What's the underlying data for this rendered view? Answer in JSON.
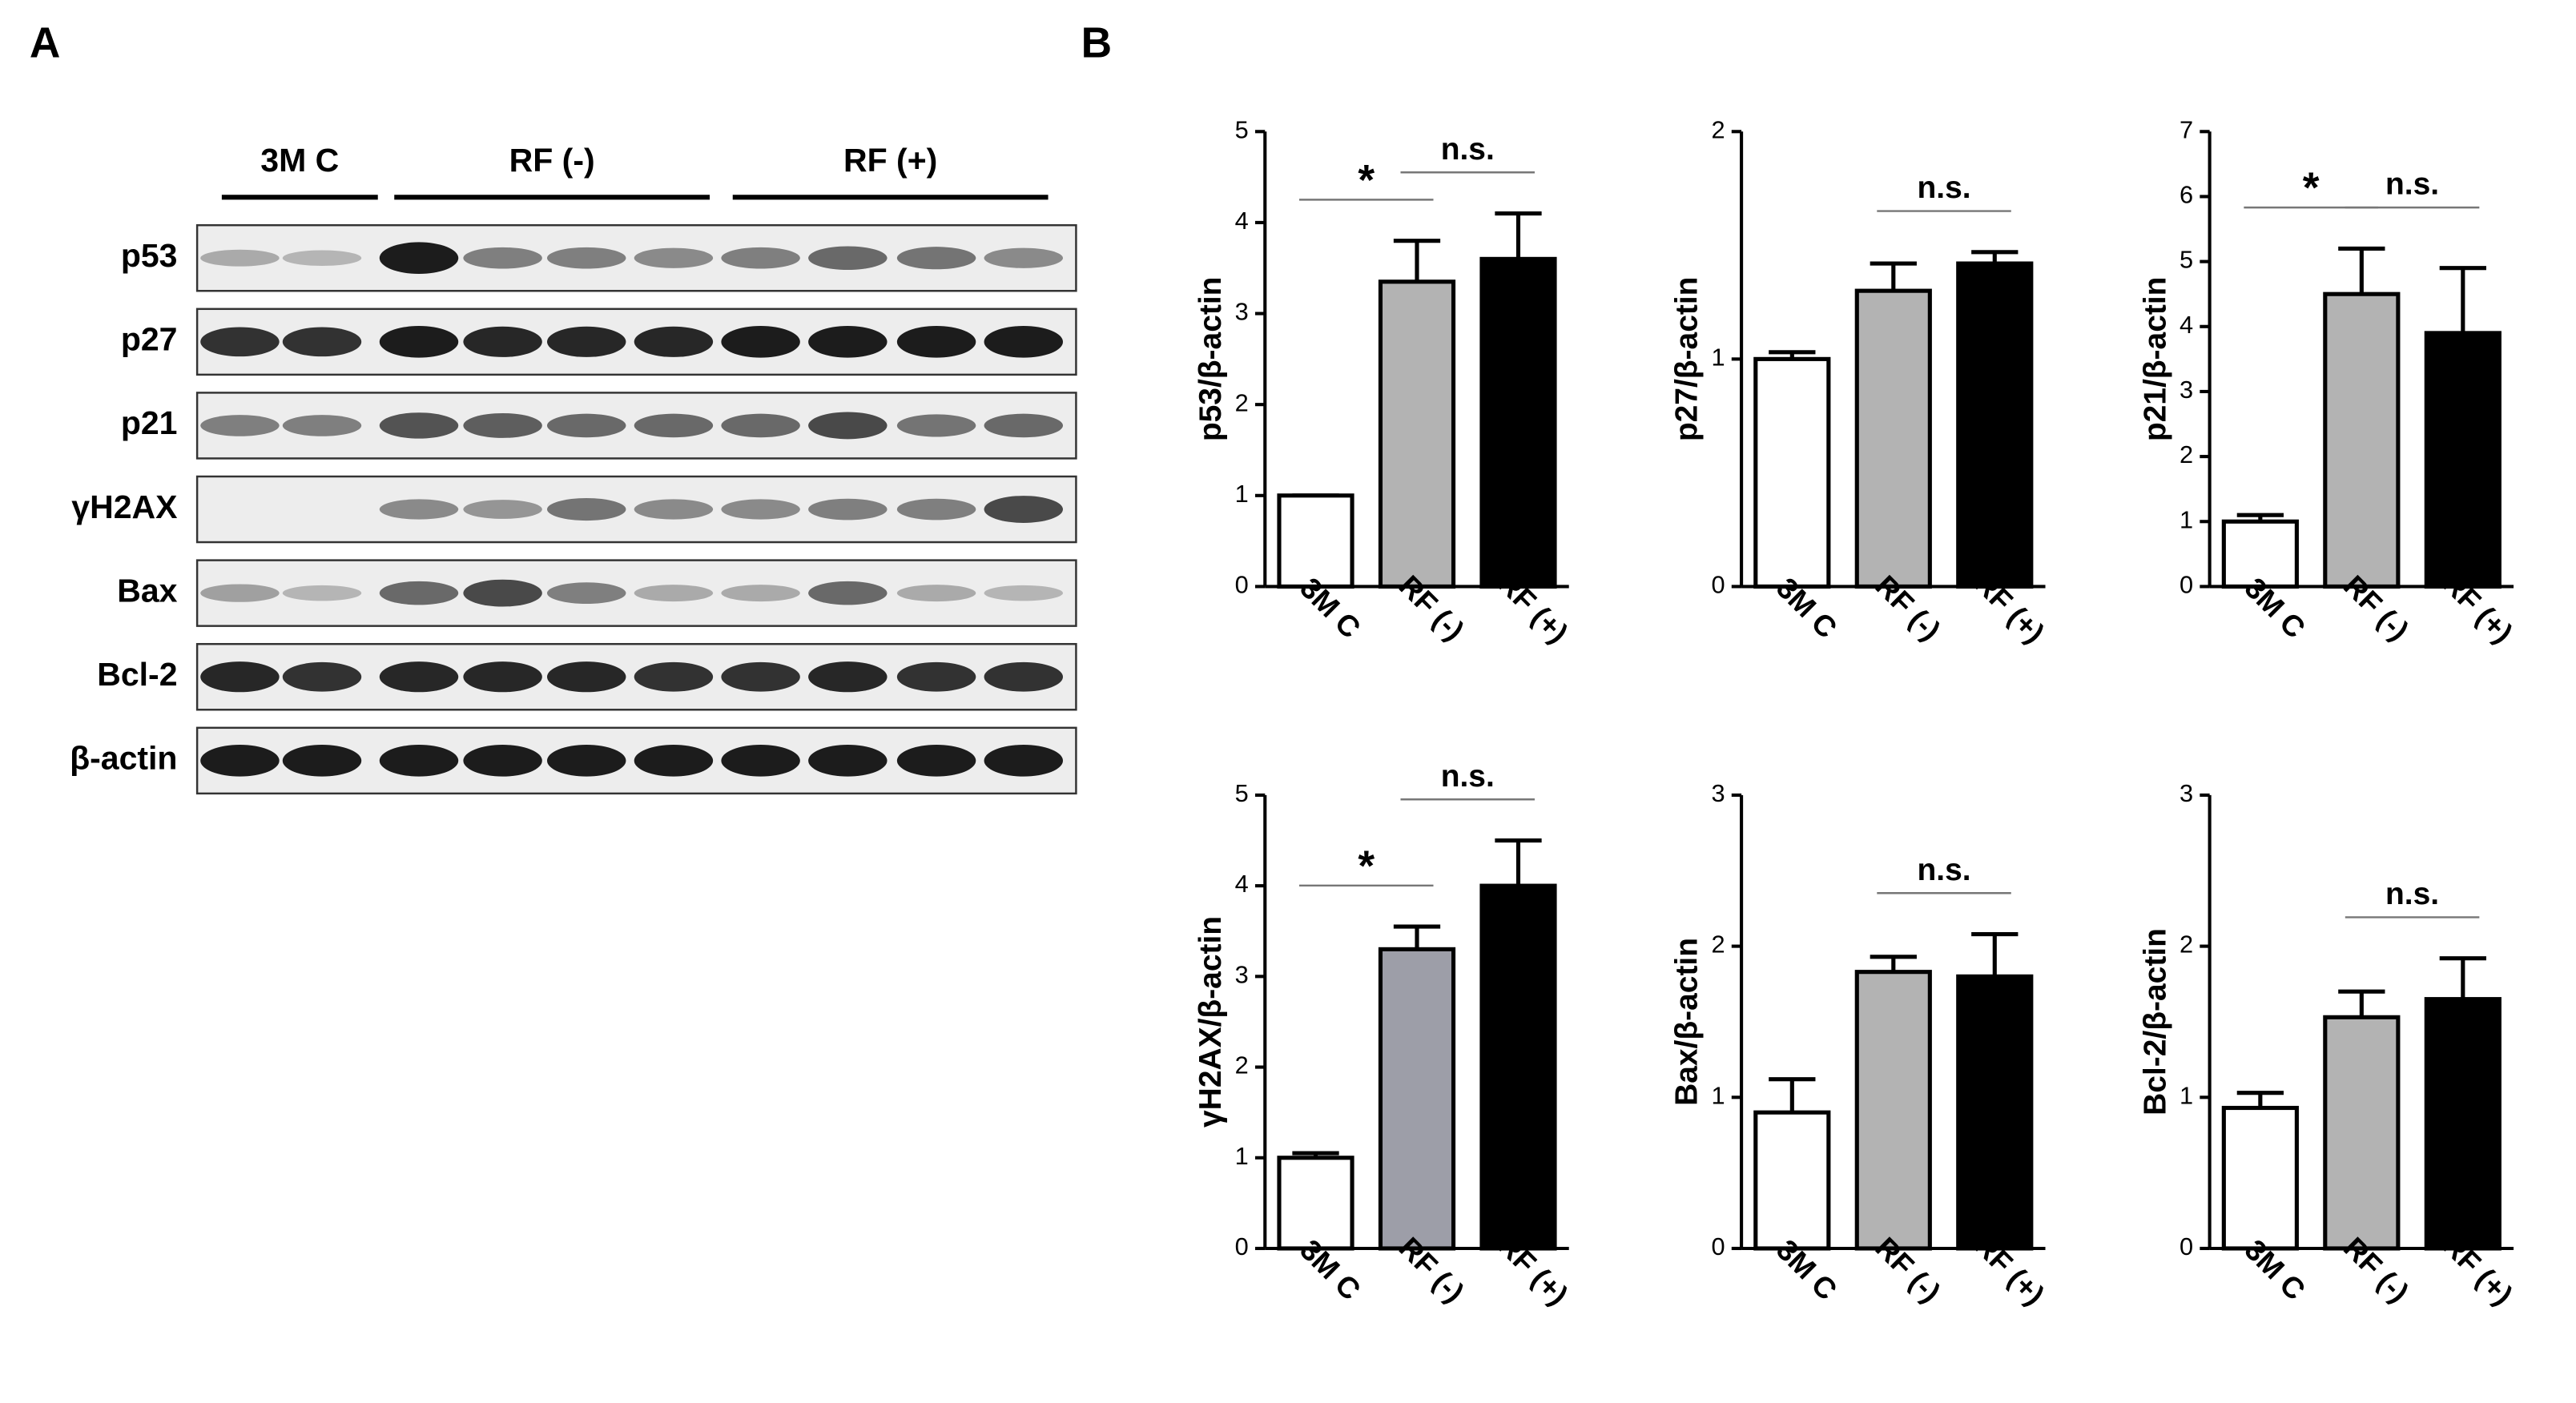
{
  "panel_labels": [
    "A",
    "B"
  ],
  "blot": {
    "groups": [
      "3M C",
      "RF (-)",
      "RF (+)"
    ],
    "rows": [
      "p53",
      "p27",
      "p21",
      "γH2AX",
      "Bax",
      "Bcl-2",
      "β-actin"
    ]
  },
  "chart_data": [
    {
      "type": "bar",
      "y_label": "p53/β-actin",
      "categories": [
        "3M C",
        "RF (-)",
        "RF (+)"
      ],
      "values": [
        1,
        3.35,
        3.6
      ],
      "errors": [
        0,
        0.45,
        0.5
      ],
      "colors": [
        "#ffffff",
        "#b3b3b3",
        "#000000"
      ],
      "ylim": [
        0,
        5
      ],
      "yticks": [
        0,
        1,
        2,
        3,
        4,
        5
      ],
      "annotations": [
        {
          "label": "*",
          "between": [
            0,
            1
          ]
        },
        {
          "label": "n.s.",
          "between": [
            1,
            2
          ]
        }
      ]
    },
    {
      "type": "bar",
      "y_label": "p27/β-actin",
      "categories": [
        "3M C",
        "RF (-)",
        "RF (+)"
      ],
      "values": [
        1,
        1.3,
        1.42
      ],
      "errors": [
        0.03,
        0.12,
        0.05
      ],
      "colors": [
        "#ffffff",
        "#b3b3b3",
        "#000000"
      ],
      "ylim": [
        0,
        2
      ],
      "yticks": [
        0,
        1,
        2
      ],
      "annotations": [
        {
          "label": "n.s.",
          "between": [
            1,
            2
          ]
        }
      ]
    },
    {
      "type": "bar",
      "y_label": "p21/β-actin",
      "categories": [
        "3M C",
        "RF (-)",
        "RF (+)"
      ],
      "values": [
        1,
        4.5,
        3.9
      ],
      "errors": [
        0.1,
        0.7,
        1.0
      ],
      "colors": [
        "#ffffff",
        "#b3b3b3",
        "#000000"
      ],
      "ylim": [
        0,
        7
      ],
      "yticks": [
        0,
        1,
        2,
        3,
        4,
        5,
        6,
        7
      ],
      "annotations": [
        {
          "label": "*",
          "between": [
            0,
            1
          ]
        },
        {
          "label": "n.s.",
          "between": [
            1,
            2
          ]
        }
      ]
    },
    {
      "type": "bar",
      "y_label": "γH2AX/β-actin",
      "categories": [
        "3M C",
        "RF (-)",
        "RF (+)"
      ],
      "values": [
        1,
        3.3,
        4.0
      ],
      "errors": [
        0.05,
        0.25,
        0.5
      ],
      "colors": [
        "#ffffff",
        "#9d9ea8",
        "#000000"
      ],
      "ylim": [
        0,
        5
      ],
      "yticks": [
        0,
        1,
        2,
        3,
        4,
        5
      ],
      "annotations": [
        {
          "label": "*",
          "between": [
            0,
            1
          ]
        },
        {
          "label": "n.s.",
          "between": [
            1,
            2
          ]
        }
      ]
    },
    {
      "type": "bar",
      "y_label": "Bax/β-actin",
      "categories": [
        "3M C",
        "RF (-)",
        "RF (+)"
      ],
      "values": [
        0.9,
        1.83,
        1.8
      ],
      "errors": [
        0.22,
        0.1,
        0.28
      ],
      "colors": [
        "#ffffff",
        "#b3b3b3",
        "#000000"
      ],
      "ylim": [
        0,
        3
      ],
      "yticks": [
        0,
        1,
        2,
        3
      ],
      "annotations": [
        {
          "label": "n.s.",
          "between": [
            1,
            2
          ]
        }
      ]
    },
    {
      "type": "bar",
      "y_label": "Bcl-2/β-actin",
      "categories": [
        "3M C",
        "RF (-)",
        "RF (+)"
      ],
      "values": [
        0.93,
        1.53,
        1.65
      ],
      "errors": [
        0.1,
        0.17,
        0.27
      ],
      "colors": [
        "#ffffff",
        "#b3b3b3",
        "#000000"
      ],
      "ylim": [
        0,
        3
      ],
      "yticks": [
        0,
        1,
        2,
        3
      ],
      "annotations": [
        {
          "label": "n.s.",
          "between": [
            1,
            2
          ]
        }
      ]
    }
  ]
}
